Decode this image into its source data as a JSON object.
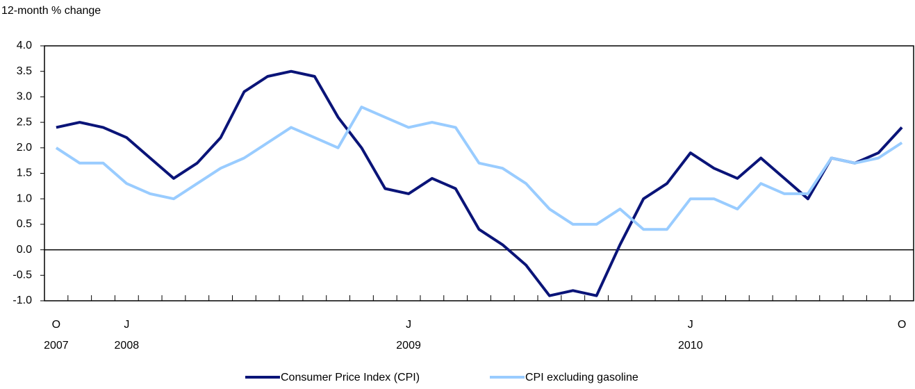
{
  "chart_data": {
    "type": "line",
    "y_label": "12-month % change",
    "categories": [
      "O",
      null,
      null,
      "J",
      null,
      null,
      null,
      null,
      null,
      null,
      null,
      null,
      null,
      null,
      null,
      "J",
      null,
      null,
      null,
      null,
      null,
      null,
      null,
      null,
      null,
      null,
      null,
      "J",
      null,
      null,
      null,
      null,
      null,
      null,
      null,
      null,
      "O"
    ],
    "years": [
      "2007",
      null,
      null,
      "2008",
      null,
      null,
      null,
      null,
      null,
      null,
      null,
      null,
      null,
      null,
      null,
      "2009",
      null,
      null,
      null,
      null,
      null,
      null,
      null,
      null,
      null,
      null,
      null,
      "2010",
      null,
      null,
      null,
      null,
      null,
      null,
      null,
      null,
      null
    ],
    "series": [
      {
        "name": "Consumer Price Index (CPI)",
        "color": "#0a1478",
        "values": [
          2.4,
          2.5,
          2.4,
          2.2,
          1.8,
          1.4,
          1.7,
          2.2,
          3.1,
          3.4,
          3.5,
          3.4,
          2.6,
          2.0,
          1.2,
          1.1,
          1.4,
          1.2,
          0.4,
          0.1,
          -0.3,
          -0.9,
          -0.8,
          -0.9,
          0.1,
          1.0,
          1.3,
          1.9,
          1.6,
          1.4,
          1.8,
          1.4,
          1.0,
          1.8,
          1.7,
          1.9,
          2.4
        ]
      },
      {
        "name": "CPI excluding gasoline",
        "color": "#99ccff",
        "values": [
          2.0,
          1.7,
          1.7,
          1.3,
          1.1,
          1.0,
          1.3,
          1.6,
          1.8,
          2.1,
          2.4,
          2.2,
          2.0,
          2.8,
          2.6,
          2.4,
          2.5,
          2.4,
          1.7,
          1.6,
          1.3,
          0.8,
          0.5,
          0.5,
          0.8,
          0.4,
          0.4,
          1.0,
          1.0,
          0.8,
          1.3,
          1.1,
          1.1,
          1.8,
          1.7,
          1.8,
          2.1
        ]
      }
    ],
    "ylim": [
      -1,
      4
    ],
    "yticks": [
      {
        "value": -1,
        "label": "-1.0"
      },
      -0.5,
      {
        "value": 0,
        "label": "0.0"
      },
      0.5,
      {
        "value": 1,
        "label": "1.0"
      },
      1.5,
      {
        "value": 2,
        "label": "2.0"
      },
      2.5,
      {
        "value": 3,
        "label": "3.0"
      },
      3.5,
      {
        "value": 4,
        "label": "4.0"
      }
    ],
    "grid": false,
    "legend": "bottom"
  }
}
